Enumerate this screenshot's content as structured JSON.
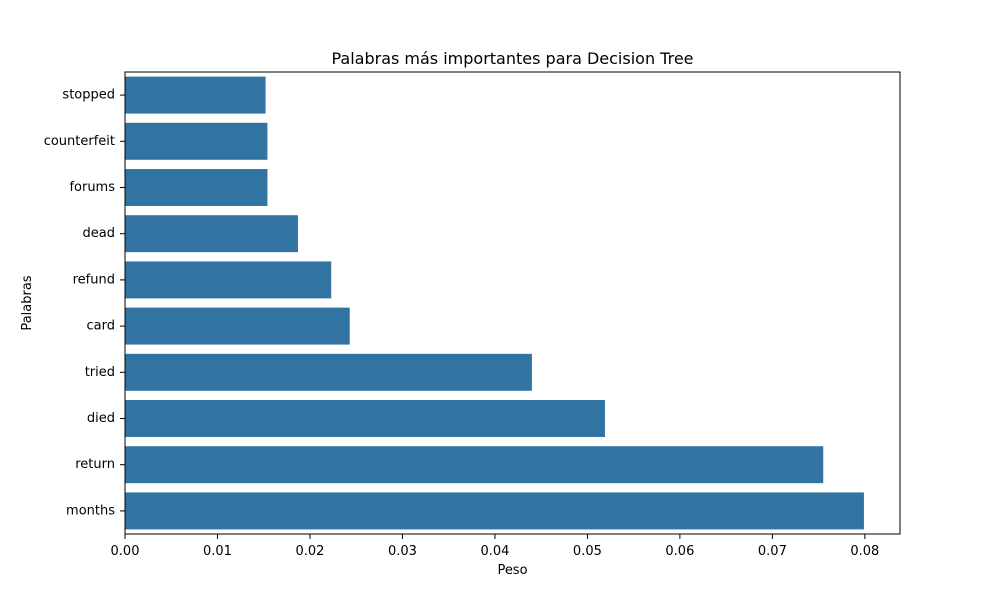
{
  "chart_data": {
    "type": "bar",
    "orientation": "horizontal",
    "title": "Palabras más importantes para Decision Tree",
    "xlabel": "Peso",
    "ylabel": "Palabras",
    "categories": [
      "stopped",
      "counterfeit",
      "forums",
      "dead",
      "refund",
      "card",
      "tried",
      "died",
      "return",
      "months"
    ],
    "values": [
      0.0152,
      0.0154,
      0.0154,
      0.0187,
      0.0223,
      0.0243,
      0.044,
      0.0519,
      0.0755,
      0.0799
    ],
    "xlim": [
      0,
      0.0838
    ],
    "xticks": [
      0.0,
      0.01,
      0.02,
      0.03,
      0.04,
      0.05,
      0.06,
      0.07,
      0.08
    ],
    "xtick_labels": [
      "0.00",
      "0.01",
      "0.02",
      "0.03",
      "0.04",
      "0.05",
      "0.06",
      "0.07",
      "0.08"
    ],
    "grid": false,
    "legend": "none",
    "bar_color": "#3274a1"
  }
}
